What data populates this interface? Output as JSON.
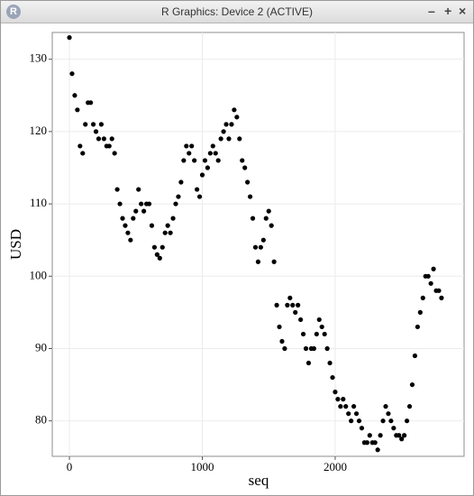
{
  "window": {
    "title": "R Graphics: Device 2 (ACTIVE)"
  },
  "chart_data": {
    "type": "scatter",
    "x_label": "seq",
    "y_label": "USD",
    "x": [
      0,
      20,
      40,
      60,
      80,
      100,
      120,
      140,
      160,
      180,
      200,
      220,
      240,
      260,
      280,
      300,
      320,
      340,
      360,
      380,
      400,
      420,
      440,
      460,
      480,
      500,
      520,
      540,
      560,
      580,
      600,
      620,
      640,
      660,
      680,
      700,
      720,
      740,
      760,
      780,
      800,
      820,
      840,
      860,
      880,
      900,
      920,
      940,
      960,
      980,
      1000,
      1020,
      1040,
      1060,
      1080,
      1100,
      1120,
      1140,
      1160,
      1180,
      1200,
      1220,
      1240,
      1260,
      1280,
      1300,
      1320,
      1340,
      1360,
      1380,
      1400,
      1420,
      1440,
      1460,
      1480,
      1500,
      1520,
      1540,
      1560,
      1580,
      1600,
      1620,
      1640,
      1660,
      1680,
      1700,
      1720,
      1740,
      1760,
      1780,
      1800,
      1820,
      1840,
      1860,
      1880,
      1900,
      1920,
      1940,
      1960,
      1980,
      2000,
      2020,
      2040,
      2060,
      2080,
      2100,
      2120,
      2140,
      2160,
      2180,
      2200,
      2220,
      2240,
      2260,
      2280,
      2300,
      2320,
      2340,
      2360,
      2380,
      2400,
      2420,
      2440,
      2460,
      2480,
      2500,
      2520,
      2540,
      2560,
      2580,
      2600,
      2620,
      2640,
      2660,
      2680,
      2700,
      2720,
      2740,
      2760,
      2780,
      2800
    ],
    "values": [
      133,
      128,
      125,
      123,
      118,
      117,
      121,
      124,
      124,
      121,
      120,
      119,
      121,
      119,
      118,
      118,
      119,
      117,
      112,
      110,
      108,
      107,
      106,
      105,
      108,
      109,
      112,
      110,
      109,
      110,
      110,
      107,
      104,
      103,
      102.5,
      104,
      106,
      107,
      106,
      108,
      110,
      111,
      113,
      116,
      118,
      117,
      118,
      116,
      112,
      111,
      114,
      116,
      115,
      117,
      118,
      117,
      116,
      119,
      120,
      121,
      119,
      121,
      123,
      122,
      119,
      116,
      115,
      113,
      111,
      108,
      104,
      102,
      104,
      105,
      108,
      109,
      107,
      102,
      96,
      93,
      91,
      90,
      96,
      97,
      96,
      95,
      96,
      94,
      92,
      90,
      88,
      90,
      90,
      92,
      94,
      93,
      92,
      90,
      88,
      86,
      84,
      83,
      82,
      83,
      82,
      81,
      80,
      82,
      81,
      80,
      79,
      77,
      77,
      78,
      77,
      77,
      76,
      78,
      80,
      82,
      81,
      80,
      79,
      78,
      78,
      77.5,
      78,
      80,
      82,
      85,
      89,
      93,
      95,
      97,
      100,
      100,
      99,
      101,
      98,
      98,
      97
    ],
    "color": "#000000",
    "xlim": [
      -129,
      2970
    ],
    "ylim": [
      75.1,
      133.7
    ],
    "xticks": [
      0,
      1000,
      2000
    ],
    "yticks": [
      80,
      90,
      100,
      110,
      120,
      130
    ],
    "grid": true
  }
}
